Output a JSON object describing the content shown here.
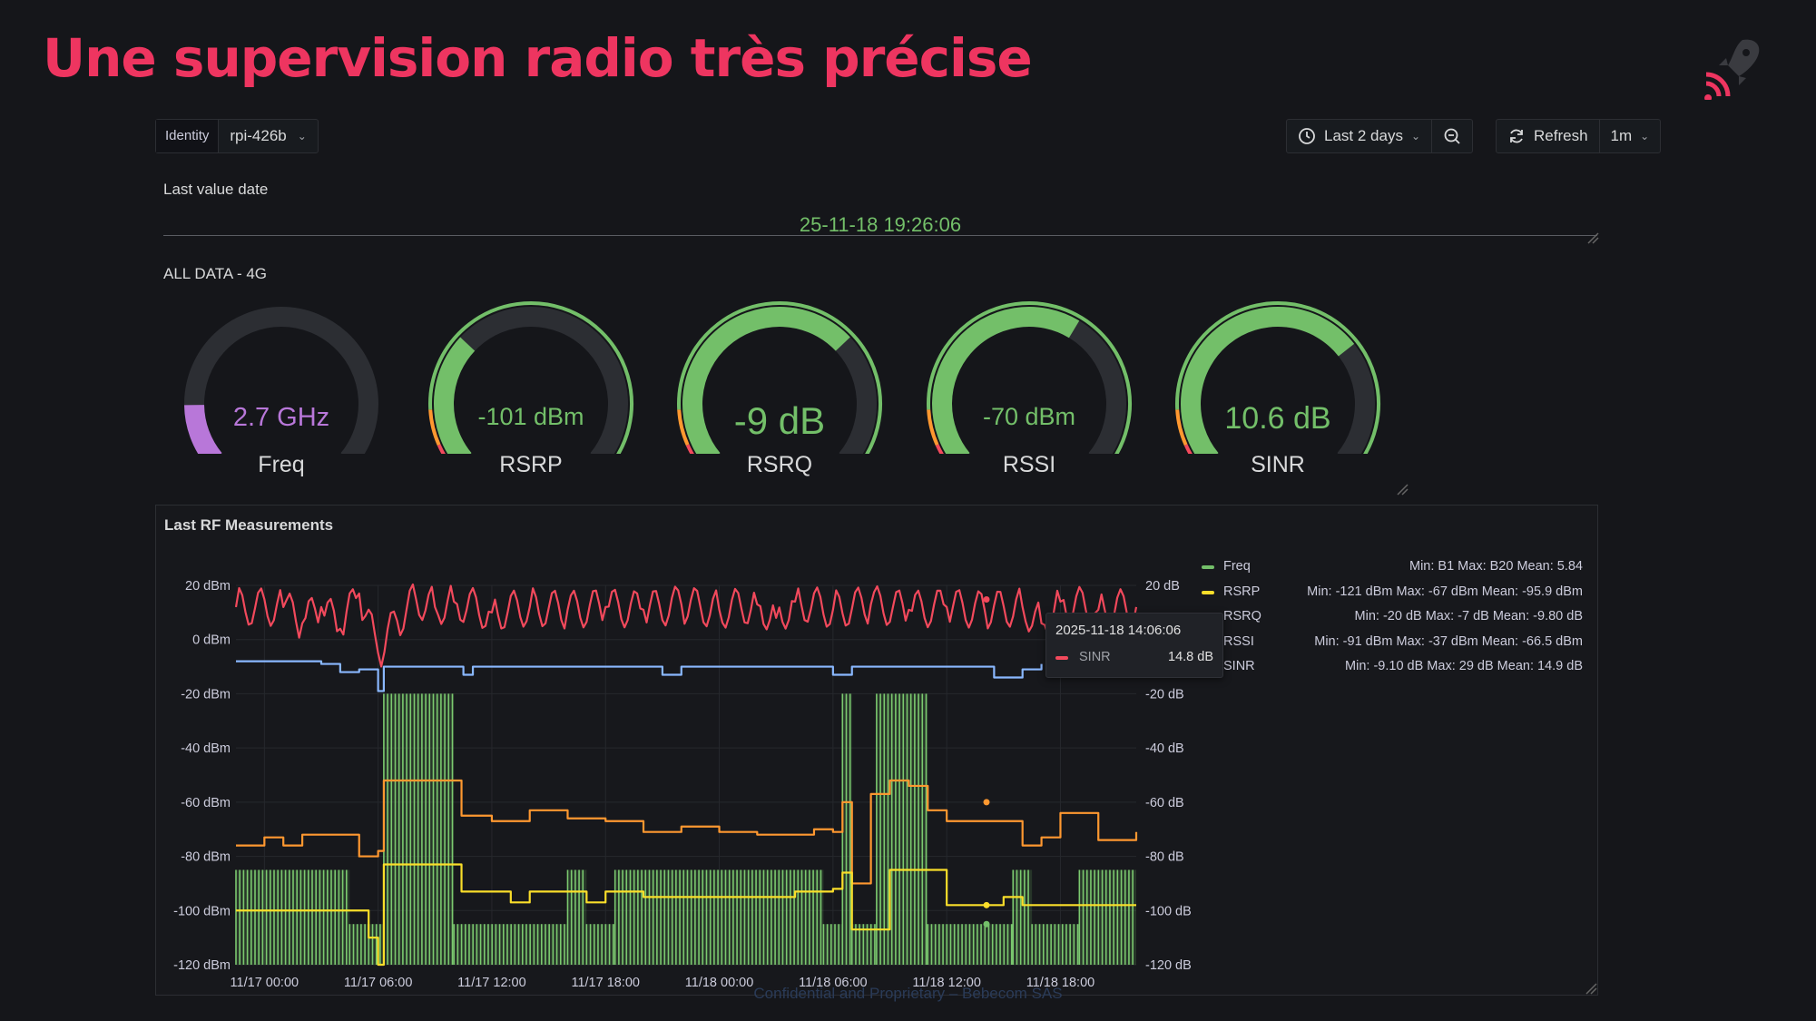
{
  "slide": {
    "title": "Une supervision radio très précise",
    "footer": "Confidential and Proprietary – Bebecom SAS"
  },
  "logo": {
    "icon": "rocket-signal-icon",
    "color": "#ee3560"
  },
  "variables": {
    "label": "Identity",
    "value": "rpi-426b"
  },
  "toolbar": {
    "time_range": "Last 2 days",
    "refresh_label": "Refresh",
    "refresh_interval": "1m"
  },
  "last_value": {
    "title": "Last value date",
    "value": "25-11-18 19:26:06"
  },
  "gauges_panel": {
    "title": "ALL DATA - 4G",
    "gauges": [
      {
        "label": "Freq",
        "value": "2.7 GHz",
        "fill": 0.15,
        "color": "#b877d9"
      },
      {
        "label": "RSRP",
        "value": "-101 dBm",
        "fill": 0.32,
        "color": "#73bf69"
      },
      {
        "label": "RSRQ",
        "value": "-9 dB",
        "fill": 0.68,
        "color": "#73bf69"
      },
      {
        "label": "RSSI",
        "value": "-70 dBm",
        "fill": 0.62,
        "color": "#73bf69"
      },
      {
        "label": "SINR",
        "value": "10.6 dB",
        "fill": 0.7,
        "color": "#73bf69"
      }
    ]
  },
  "chart_panel": {
    "title": "Last RF Measurements",
    "legend": [
      {
        "name": "Freq",
        "color": "#73bf69",
        "stats": "Min: B1   Max: B20   Mean: 5.84"
      },
      {
        "name": "RSRP",
        "color": "#fade2a",
        "stats": "Min: -121 dBm   Max: -67 dBm   Mean: -95.9 dBm"
      },
      {
        "name": "RSRQ",
        "color": "#ff9830",
        "stats": "Min: -20 dB   Max: -7 dB   Mean: -9.80 dB"
      },
      {
        "name": "RSSI",
        "color": "#8ab8ff",
        "stats": "Min: -91 dBm   Max: -37 dBm   Mean: -66.5 dBm"
      },
      {
        "name": "SINR",
        "color": "#f2495c",
        "stats": "Min: -9.10 dB   Max: 29 dB   Mean: 14.9 dB"
      }
    ],
    "tooltip": {
      "time": "2025-11-18 14:06:06",
      "series": "SINR",
      "value": "14.8 dB"
    }
  },
  "chart_data": {
    "type": "line",
    "x_ticks": [
      "11/17 00:00",
      "11/17 06:00",
      "11/17 12:00",
      "11/17 18:00",
      "11/18 00:00",
      "11/18 06:00",
      "11/18 12:00",
      "11/18 18:00"
    ],
    "y_left_ticks": [
      "20 dBm",
      "0 dBm",
      "-20 dBm",
      "-40 dBm",
      "-60 dBm",
      "-80 dBm",
      "-100 dBm",
      "-120 dBm"
    ],
    "y_right_ticks": [
      "20 dB",
      "0 dB",
      "-20 dB",
      "-40 dB",
      "-60 dB",
      "-80 dB",
      "-100 dB",
      "-120 dB"
    ],
    "ylim": [
      -120,
      20
    ],
    "x_hours": [
      -1.5,
      46
    ],
    "series": [
      {
        "name": "SINR",
        "color": "#f2495c",
        "points": [
          [
            -1.5,
            12
          ],
          [
            1,
            12
          ],
          [
            2,
            6
          ],
          [
            3,
            12
          ],
          [
            4,
            4
          ],
          [
            5,
            17
          ],
          [
            6,
            -5
          ],
          [
            7,
            7
          ],
          [
            8,
            15
          ],
          [
            9,
            12
          ],
          [
            10,
            14
          ],
          [
            12,
            10
          ],
          [
            14,
            12
          ],
          [
            16,
            11
          ],
          [
            18,
            12
          ],
          [
            20,
            11
          ],
          [
            22,
            13
          ],
          [
            24,
            11
          ],
          [
            26,
            13
          ],
          [
            27,
            8
          ],
          [
            28,
            14
          ],
          [
            30,
            11
          ],
          [
            32,
            13
          ],
          [
            34,
            11
          ],
          [
            36,
            12
          ],
          [
            38,
            11
          ],
          [
            40,
            12
          ],
          [
            41,
            6
          ],
          [
            42,
            14
          ],
          [
            44,
            11
          ],
          [
            46,
            12
          ]
        ]
      },
      {
        "name": "RSSI",
        "color": "#8ab8ff",
        "points": [
          [
            -1.5,
            -8
          ],
          [
            3,
            -9
          ],
          [
            4,
            -12
          ],
          [
            5,
            -11
          ],
          [
            6,
            -19
          ],
          [
            6.3,
            -10
          ],
          [
            10,
            -10
          ],
          [
            10.5,
            -13
          ],
          [
            11,
            -10
          ],
          [
            20,
            -10
          ],
          [
            21,
            -13
          ],
          [
            22,
            -10
          ],
          [
            29,
            -10
          ],
          [
            30,
            -13
          ],
          [
            31,
            -10
          ],
          [
            38,
            -10
          ],
          [
            38.5,
            -14
          ],
          [
            40,
            -11
          ],
          [
            41,
            -9
          ]
        ]
      },
      {
        "name": "RSRQ",
        "color": "#ff9830",
        "points": [
          [
            -1.5,
            -76
          ],
          [
            0,
            -73
          ],
          [
            1,
            -76
          ],
          [
            2,
            -72
          ],
          [
            4,
            -72
          ],
          [
            5,
            -80
          ],
          [
            6,
            -78
          ],
          [
            6.3,
            -52
          ],
          [
            10,
            -52
          ],
          [
            10.4,
            -65
          ],
          [
            12,
            -67
          ],
          [
            14,
            -63
          ],
          [
            16,
            -66
          ],
          [
            18,
            -67
          ],
          [
            20,
            -71
          ],
          [
            22,
            -69
          ],
          [
            24,
            -71
          ],
          [
            26,
            -72
          ],
          [
            28,
            -72
          ],
          [
            29,
            -70
          ],
          [
            30,
            -71
          ],
          [
            30.5,
            -60
          ],
          [
            31,
            -90
          ],
          [
            32,
            -57
          ],
          [
            33,
            -52
          ],
          [
            34,
            -54
          ],
          [
            35,
            -63
          ],
          [
            36,
            -67
          ],
          [
            38,
            -67
          ],
          [
            40,
            -76
          ],
          [
            41,
            -73
          ],
          [
            42,
            -64
          ],
          [
            44,
            -74
          ],
          [
            46,
            -71
          ]
        ]
      },
      {
        "name": "RSRP",
        "color": "#fade2a",
        "points": [
          [
            -1.5,
            -100
          ],
          [
            5,
            -100
          ],
          [
            5.5,
            -110
          ],
          [
            6,
            -120
          ],
          [
            6.3,
            -83
          ],
          [
            10,
            -83
          ],
          [
            10.4,
            -93
          ],
          [
            12,
            -93
          ],
          [
            13,
            -97
          ],
          [
            14,
            -93
          ],
          [
            16,
            -93
          ],
          [
            17,
            -97
          ],
          [
            18,
            -93
          ],
          [
            20,
            -95
          ],
          [
            22,
            -95
          ],
          [
            24,
            -95
          ],
          [
            26,
            -95
          ],
          [
            28,
            -93
          ],
          [
            30,
            -92
          ],
          [
            30.5,
            -86
          ],
          [
            31,
            -107
          ],
          [
            32,
            -107
          ],
          [
            33,
            -85
          ],
          [
            35,
            -85
          ],
          [
            36,
            -98
          ],
          [
            38,
            -98
          ],
          [
            39,
            -95
          ],
          [
            40,
            -98
          ],
          [
            42,
            -98
          ],
          [
            46,
            -98
          ]
        ]
      }
    ],
    "freq_bands": [
      {
        "start": -1.5,
        "end": 4.5,
        "value": -85
      },
      {
        "start": 4.5,
        "end": 6.3,
        "value": -105
      },
      {
        "start": 6.3,
        "end": 10,
        "value": -20
      },
      {
        "start": 10,
        "end": 16,
        "value": -105
      },
      {
        "start": 16,
        "end": 17,
        "value": -85
      },
      {
        "start": 17,
        "end": 18.5,
        "value": -105
      },
      {
        "start": 18.5,
        "end": 29.5,
        "value": -85
      },
      {
        "start": 29.5,
        "end": 30.5,
        "value": -105
      },
      {
        "start": 30.5,
        "end": 31,
        "value": -20
      },
      {
        "start": 31,
        "end": 32.3,
        "value": -105
      },
      {
        "start": 32.3,
        "end": 35,
        "value": -20
      },
      {
        "start": 35,
        "end": 39.5,
        "value": -105
      },
      {
        "start": 39.5,
        "end": 40.5,
        "value": -85
      },
      {
        "start": 40.5,
        "end": 43,
        "value": -105
      },
      {
        "start": 43,
        "end": 46,
        "value": -85
      }
    ]
  }
}
